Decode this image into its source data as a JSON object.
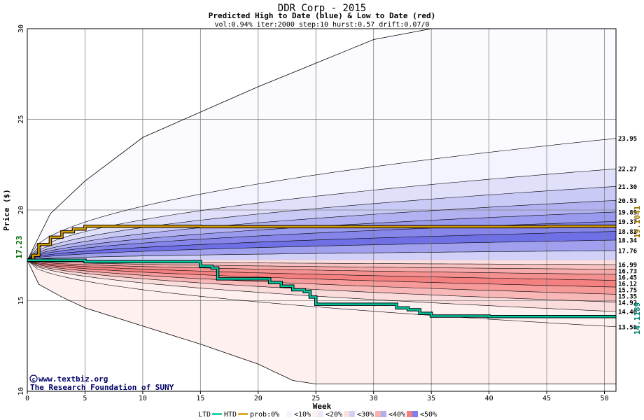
{
  "chart_data": {
    "type": "area",
    "title": "DDR Corp - 2015",
    "subtitle": "Predicted High to Date (blue) &  Low to Date (red)",
    "params": "vol:0.94% iter:2000 step:10 hurst:0.57 drift:0.07/0",
    "xlabel": "Week",
    "ylabel": "Price ($)",
    "xlim": [
      0,
      51
    ],
    "ylim": [
      10,
      30
    ],
    "xticks": [
      0,
      5,
      10,
      15,
      20,
      25,
      30,
      35,
      40,
      45,
      50
    ],
    "yticks": [
      10,
      15,
      20,
      25,
      30
    ],
    "start_price": 17.23,
    "start_price_label": "17.23",
    "htd_final_label": "19.1041",
    "ltd_final_label": "14.1189",
    "credit_line1": "www.textbiz.org",
    "credit_line2": "The Research Foundation of SUNY",
    "high_band_end_values": [
      23.95,
      22.27,
      21.3,
      20.53,
      19.89,
      19.37,
      18.82,
      18.34,
      17.76
    ],
    "high_band_end_labels": [
      "23.95",
      "22.27",
      "21.30",
      "20.53",
      "19.89",
      "19.37",
      "18.82",
      "18.34",
      "17.76"
    ],
    "low_band_end_values": [
      16.99,
      16.73,
      16.45,
      16.12,
      15.75,
      15.35,
      14.92,
      14.4,
      13.56
    ],
    "low_band_end_labels": [
      "16.99",
      "16.73",
      "16.45",
      "16.12",
      "15.75",
      "15.35",
      "14.92",
      "14.40",
      "13.56"
    ],
    "outer_high_path": {
      "x": [
        0,
        2,
        5,
        10,
        15,
        20,
        25,
        30,
        35
      ],
      "y": [
        17.23,
        19.8,
        21.6,
        24.0,
        25.4,
        26.8,
        28.1,
        29.4,
        30.0
      ]
    },
    "outer_low_path": {
      "x": [
        0,
        1,
        3,
        5,
        10,
        15,
        20,
        23,
        25,
        30,
        35,
        40,
        45,
        51
      ],
      "y": [
        17.23,
        15.9,
        15.2,
        14.6,
        13.6,
        12.6,
        11.5,
        10.6,
        10.4,
        10.4,
        10.4,
        10.4,
        10.4,
        10.4
      ]
    },
    "series": [
      {
        "name": "HTD",
        "color": "#d49a00",
        "x": [
          0,
          0.5,
          1,
          2,
          3,
          4,
          5,
          6,
          10,
          15,
          20,
          25,
          30,
          35,
          40,
          45,
          51
        ],
        "y": [
          17.23,
          17.5,
          18.1,
          18.5,
          18.8,
          18.95,
          19.1,
          19.1,
          19.1,
          19.08,
          19.08,
          19.08,
          19.08,
          19.08,
          19.08,
          19.1,
          19.1
        ]
      },
      {
        "name": "LTD",
        "color": "#00c8a0",
        "x": [
          0,
          5,
          10,
          14.5,
          15,
          16,
          16.5,
          20,
          21,
          22,
          23,
          24,
          24.5,
          25,
          30,
          32,
          33,
          34,
          35,
          40,
          51
        ],
        "y": [
          17.23,
          17.15,
          17.15,
          17.15,
          16.9,
          16.8,
          16.2,
          16.2,
          16.0,
          15.8,
          15.6,
          15.5,
          15.2,
          14.8,
          14.8,
          14.6,
          14.5,
          14.3,
          14.15,
          14.12,
          14.12
        ]
      }
    ],
    "grid": true,
    "legend_position": "bottom",
    "legend": {
      "ltd_label": "LTD",
      "htd_label": "HTD",
      "prob_label": "prob:0%",
      "buckets": [
        "<10%",
        "<20%",
        "<30%",
        "<40%",
        "<50%"
      ]
    },
    "colors": {
      "high_bands": [
        "#f4f4ff",
        "#e0e0fa",
        "#cacaf6",
        "#b2b2f2",
        "#9a9aee",
        "#8585ea",
        "#7070e6",
        "#a0a0ee",
        "#d0d0f8"
      ],
      "low_bands": [
        "#fce0e0",
        "#f9c2c2",
        "#f7aaaa",
        "#f59090",
        "#f48080",
        "#f69a9a",
        "#f8b8b8",
        "#fbdcdc",
        "#fff0f0"
      ],
      "outer_high_fill": "#fbfbff",
      "outer_low_fill": "#fff0f0",
      "htd": "#d49a00",
      "ltd": "#00c8a0",
      "start_label": "#006600",
      "htd_label": "#9a7000",
      "ltd_label": "#008070"
    }
  }
}
